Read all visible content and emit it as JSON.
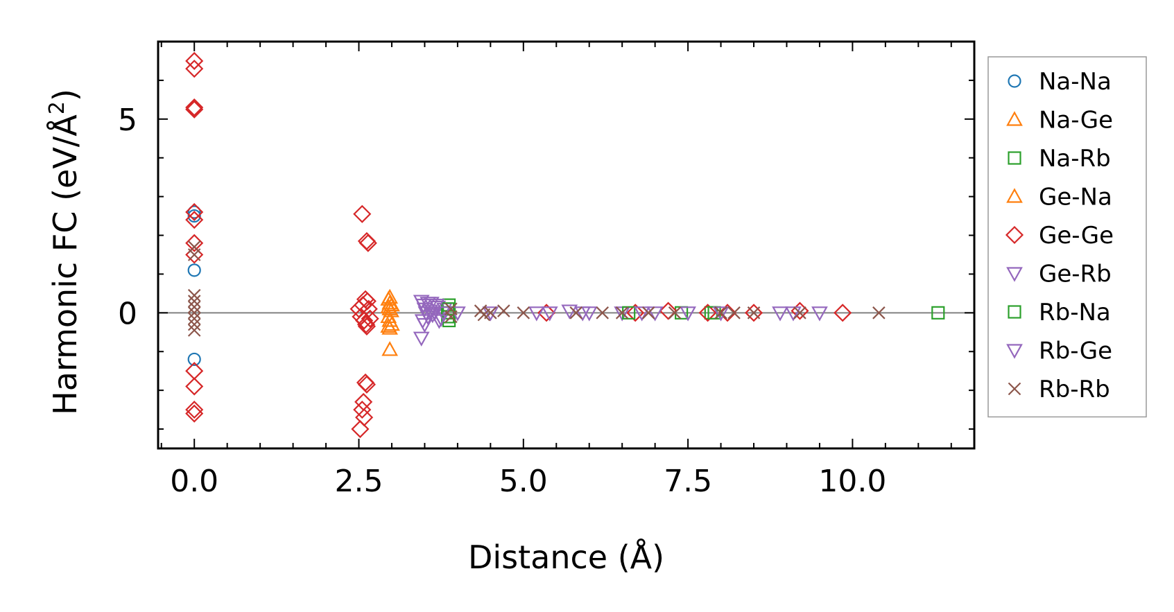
{
  "chart_data": {
    "type": "scatter",
    "title": "",
    "xlabel": "Distance (Å)",
    "ylabel_main": "Harmonic FC (eV/Å",
    "ylabel_sup": "2",
    "ylabel_tail": ")",
    "xlim": [
      -0.55,
      11.85
    ],
    "ylim": [
      -3.5,
      7.0
    ],
    "xticks": [
      0,
      2.5,
      5,
      7.5,
      10
    ],
    "xtick_labels": [
      "0.0",
      "2.5",
      "5.0",
      "7.5",
      "10.0"
    ],
    "yticks": [
      0,
      5
    ],
    "ytick_labels": [
      "0",
      "5"
    ],
    "zero_line": 0,
    "legend_position": "outside-right",
    "series": [
      {
        "name": "Na-Na",
        "marker": "circle",
        "color": "#1f77b4",
        "points": [
          [
            0,
            2.6
          ],
          [
            0,
            2.5
          ],
          [
            0,
            1.1
          ],
          [
            0,
            -1.2
          ]
        ]
      },
      {
        "name": "Na-Ge",
        "marker": "triangle-up",
        "color": "#ff7f0e",
        "points": [
          [
            2.97,
            0.4
          ],
          [
            2.97,
            0.25
          ],
          [
            2.97,
            0.1
          ],
          [
            2.97,
            -0.2
          ],
          [
            2.97,
            -0.4
          ],
          [
            2.97,
            -0.95
          ],
          [
            2.99,
            0.05
          ],
          [
            3.0,
            -0.3
          ]
        ]
      },
      {
        "name": "Na-Rb",
        "marker": "square",
        "color": "#2ca02c",
        "points": [
          [
            3.87,
            0.2
          ],
          [
            3.87,
            0.0
          ],
          [
            3.87,
            -0.2
          ],
          [
            7.4,
            0.0
          ],
          [
            7.85,
            0.0
          ],
          [
            11.3,
            0.0
          ]
        ]
      },
      {
        "name": "Ge-Na",
        "marker": "triangle-up",
        "color": "#ff7f0e",
        "points": [
          [
            2.95,
            0.35
          ],
          [
            2.95,
            0.15
          ],
          [
            2.95,
            -0.1
          ],
          [
            2.95,
            -0.35
          ],
          [
            3.0,
            0.2
          ]
        ]
      },
      {
        "name": "Ge-Ge",
        "marker": "diamond",
        "color": "#d62728",
        "points": [
          [
            0,
            6.5
          ],
          [
            0,
            6.3
          ],
          [
            0,
            5.3
          ],
          [
            0,
            5.25
          ],
          [
            0,
            2.6
          ],
          [
            0,
            2.4
          ],
          [
            0,
            1.8
          ],
          [
            0,
            1.5
          ],
          [
            0,
            -1.5
          ],
          [
            0,
            -1.9
          ],
          [
            0,
            -2.5
          ],
          [
            0,
            -2.6
          ],
          [
            2.55,
            2.55
          ],
          [
            2.62,
            1.85
          ],
          [
            2.64,
            1.8
          ],
          [
            2.6,
            -1.8
          ],
          [
            2.62,
            -1.85
          ],
          [
            2.57,
            -2.3
          ],
          [
            2.55,
            -2.5
          ],
          [
            2.58,
            -2.7
          ],
          [
            2.52,
            -3.0
          ],
          [
            2.5,
            0.1
          ],
          [
            2.53,
            -0.1
          ],
          [
            2.56,
            0.2
          ],
          [
            2.58,
            -0.2
          ],
          [
            2.6,
            0.35
          ],
          [
            2.62,
            -0.35
          ],
          [
            2.65,
            0.1
          ],
          [
            2.67,
            -0.15
          ],
          [
            2.63,
            0.3
          ],
          [
            2.61,
            -0.3
          ],
          [
            5.35,
            0.0
          ],
          [
            6.7,
            0.0
          ],
          [
            7.2,
            0.05
          ],
          [
            7.8,
            0.0
          ],
          [
            8.1,
            0.0
          ],
          [
            8.5,
            0.0
          ],
          [
            9.2,
            0.05
          ],
          [
            9.85,
            0.0
          ]
        ]
      },
      {
        "name": "Ge-Rb",
        "marker": "triangle-down",
        "color": "#9467bd",
        "points": [
          [
            3.45,
            0.3
          ],
          [
            3.48,
            0.2
          ],
          [
            3.5,
            0.1
          ],
          [
            3.52,
            0.0
          ],
          [
            3.55,
            -0.1
          ],
          [
            3.47,
            -0.2
          ],
          [
            3.5,
            -0.3
          ],
          [
            3.45,
            -0.65
          ],
          [
            3.6,
            0.25
          ],
          [
            3.65,
            0.0
          ],
          [
            3.7,
            0.15
          ],
          [
            3.75,
            -0.15
          ],
          [
            3.8,
            0.1
          ],
          [
            4.0,
            0.0
          ],
          [
            5.4,
            0.0
          ],
          [
            5.7,
            0.05
          ],
          [
            5.9,
            0.0
          ],
          [
            6.5,
            0.0
          ],
          [
            7.0,
            0.0
          ],
          [
            8.9,
            0.0
          ],
          [
            9.5,
            0.0
          ]
        ]
      },
      {
        "name": "Rb-Na",
        "marker": "square",
        "color": "#2ca02c",
        "points": [
          [
            3.85,
            0.1
          ],
          [
            3.85,
            -0.1
          ],
          [
            6.6,
            0.0
          ],
          [
            7.9,
            0.0
          ]
        ]
      },
      {
        "name": "Rb-Ge",
        "marker": "triangle-down",
        "color": "#9467bd",
        "points": [
          [
            3.55,
            0.25
          ],
          [
            3.58,
            0.05
          ],
          [
            3.62,
            -0.05
          ],
          [
            3.68,
            0.2
          ],
          [
            3.72,
            -0.2
          ],
          [
            3.78,
            0.0
          ],
          [
            4.5,
            0.0
          ],
          [
            5.2,
            0.0
          ],
          [
            6.0,
            0.0
          ],
          [
            6.8,
            0.0
          ],
          [
            7.5,
            0.0
          ],
          [
            8.0,
            0.0
          ],
          [
            9.1,
            0.0
          ]
        ]
      },
      {
        "name": "Rb-Rb",
        "marker": "cross",
        "color": "#8c564b",
        "points": [
          [
            0,
            1.7
          ],
          [
            0,
            1.5
          ],
          [
            0,
            0.45
          ],
          [
            0,
            0.3
          ],
          [
            0,
            0.15
          ],
          [
            0,
            0.0
          ],
          [
            0,
            -0.15
          ],
          [
            0,
            -0.3
          ],
          [
            0,
            -0.45
          ],
          [
            3.9,
            0.1
          ],
          [
            3.9,
            -0.1
          ],
          [
            4.35,
            0.05
          ],
          [
            4.4,
            -0.05
          ],
          [
            4.5,
            0.0
          ],
          [
            4.7,
            0.05
          ],
          [
            5.0,
            0.0
          ],
          [
            5.8,
            0.0
          ],
          [
            6.2,
            0.0
          ],
          [
            6.5,
            0.0
          ],
          [
            6.9,
            0.0
          ],
          [
            7.3,
            0.0
          ],
          [
            8.0,
            0.0
          ],
          [
            8.2,
            0.0
          ],
          [
            8.5,
            0.0
          ],
          [
            9.2,
            0.0
          ],
          [
            10.4,
            0.0
          ]
        ]
      }
    ]
  }
}
